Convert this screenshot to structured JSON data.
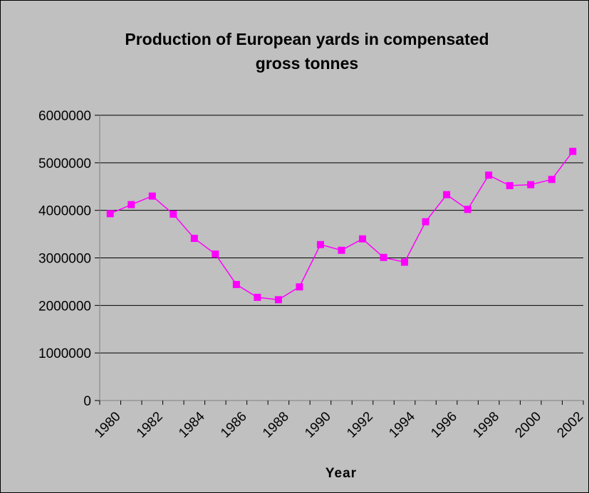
{
  "chart_data": {
    "type": "line",
    "title_lines": [
      "Production of European yards in compensated",
      "gross tonnes"
    ],
    "xlabel": "Year",
    "ylabel": "",
    "ylim": [
      0,
      6000000
    ],
    "y_ticks": [
      "0",
      "1000000",
      "2000000",
      "3000000",
      "4000000",
      "5000000",
      "6000000"
    ],
    "x_tick_labels": [
      "1980",
      "1982",
      "1984",
      "1986",
      "1988",
      "1990",
      "1992",
      "1994",
      "1996",
      "1998",
      "2000",
      "2002"
    ],
    "grid": "horizontal",
    "legend": "none",
    "series": [
      {
        "color": "#ff00ff",
        "marker": "square",
        "x": [
          1980,
          1981,
          1982,
          1983,
          1984,
          1985,
          1986,
          1987,
          1988,
          1989,
          1990,
          1991,
          1992,
          1993,
          1994,
          1995,
          1996,
          1997,
          1998,
          1999,
          2000,
          2001,
          2002
        ],
        "values": [
          3930000,
          4120000,
          4300000,
          3920000,
          3410000,
          3080000,
          2440000,
          2170000,
          2120000,
          2390000,
          3280000,
          3160000,
          3400000,
          3010000,
          2910000,
          3760000,
          4330000,
          4020000,
          4740000,
          4520000,
          4540000,
          4650000,
          5240000
        ]
      }
    ],
    "colors": {
      "chart_background": "#c0c0c0",
      "plot_background": "#c0c0c0",
      "gridline": "#000000"
    }
  }
}
